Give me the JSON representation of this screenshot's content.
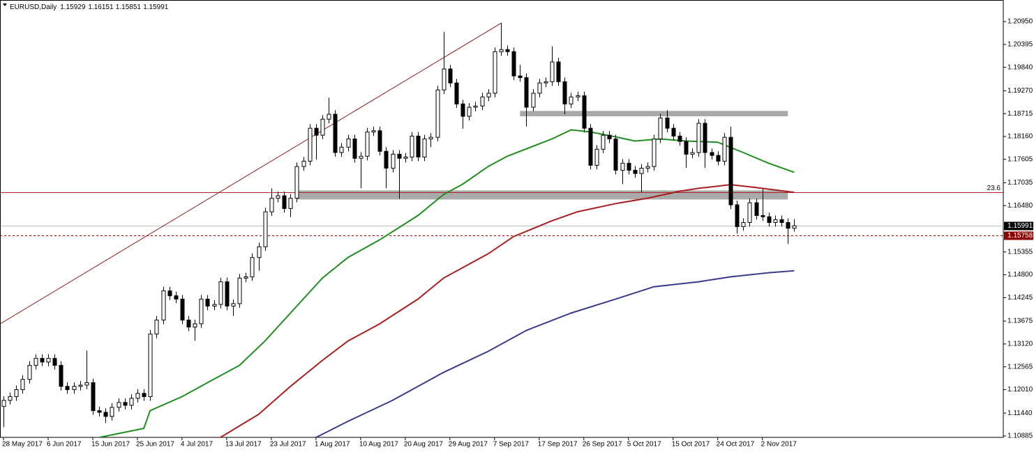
{
  "chart_data": {
    "type": "candlestick",
    "title": "EURUSD,Daily",
    "categories": [
      "28 May 2017",
      null,
      null,
      null,
      null,
      null,
      null,
      "6 Jun 2017",
      null,
      null,
      null,
      null,
      null,
      null,
      "15 Jun 2017",
      null,
      null,
      null,
      null,
      null,
      null,
      "25 Jun 2017",
      null,
      null,
      null,
      null,
      null,
      null,
      "4 Jul 2017",
      null,
      null,
      null,
      null,
      null,
      null,
      "13 Jul 2017",
      null,
      null,
      null,
      null,
      null,
      null,
      "23 Jul 2017",
      null,
      null,
      null,
      null,
      null,
      null,
      "1 Aug 2017",
      null,
      null,
      null,
      null,
      null,
      null,
      "10 Aug 2017",
      null,
      null,
      null,
      null,
      null,
      null,
      "20 Aug 2017",
      null,
      null,
      null,
      null,
      null,
      null,
      "29 Aug 2017",
      null,
      null,
      null,
      null,
      null,
      null,
      "7 Sep 2017",
      null,
      null,
      null,
      null,
      null,
      null,
      "17 Sep 2017",
      null,
      null,
      null,
      null,
      null,
      null,
      "26 Sep 2017",
      null,
      null,
      null,
      null,
      null,
      null,
      "5 Oct 2017",
      null,
      null,
      null,
      null,
      null,
      null,
      "15 Oct 2017",
      null,
      null,
      null,
      null,
      null,
      null,
      "24 Oct 2017",
      null,
      null,
      null,
      null,
      null,
      null,
      "2 Nov 2017",
      null,
      null,
      null,
      null,
      null
    ],
    "open": [
      1.116,
      1.1175,
      1.1184,
      1.1201,
      1.1226,
      1.126,
      1.1277,
      1.1268,
      1.1277,
      1.126,
      1.1209,
      1.1201,
      1.1209,
      1.1212,
      1.1218,
      1.115,
      1.1146,
      1.1136,
      1.1158,
      1.117,
      1.1163,
      1.118,
      1.1192,
      1.1184,
      1.1336,
      1.137,
      1.1441,
      1.1429,
      1.1421,
      1.137,
      1.1353,
      1.1361,
      1.1421,
      1.1404,
      1.1408,
      1.1463,
      1.1404,
      1.141,
      1.1472,
      1.1475,
      1.1522,
      1.1548,
      1.1633,
      1.1666,
      1.1672,
      1.1641,
      1.1666,
      1.1743,
      1.1756,
      1.1836,
      1.1819,
      1.1858,
      1.187,
      1.1777,
      1.179,
      1.181,
      1.1763,
      1.1768,
      1.1827,
      1.183,
      1.178,
      1.1739,
      1.1773,
      1.1763,
      1.1766,
      1.1817,
      1.1766,
      1.181,
      1.1814,
      1.1929,
      1.198,
      1.1946,
      1.1895,
      1.1865,
      1.1887,
      1.189,
      1.1912,
      1.1921,
      1.2022,
      1.2027,
      1.2022,
      1.1963,
      1.1959,
      1.1887,
      1.1921,
      1.1946,
      1.1949,
      1.1997,
      1.1949,
      1.1895,
      1.1912,
      1.1915,
      1.1836,
      1.1746,
      1.1785,
      1.1819,
      1.181,
      1.1734,
      1.1751,
      1.1734,
      1.1726,
      1.1739,
      1.1743,
      1.181,
      1.1861,
      1.1836,
      1.1817,
      1.1804,
      1.1773,
      1.1777,
      1.1848,
      1.1777,
      1.177,
      1.1756,
      1.1814,
      1.165,
      1.1597,
      1.1607,
      1.1655,
      1.1624,
      1.1621,
      1.1607,
      1.1614,
      1.1607,
      1.15929
    ],
    "high": [
      1.1185,
      1.1194,
      1.1211,
      1.1236,
      1.127,
      1.1287,
      1.1287,
      1.1287,
      1.1287,
      1.127,
      1.1219,
      1.1219,
      1.1222,
      1.1296,
      1.1228,
      1.116,
      1.1156,
      1.1168,
      1.118,
      1.118,
      1.119,
      1.1202,
      1.1202,
      1.1346,
      1.138,
      1.1451,
      1.1451,
      1.1439,
      1.1431,
      1.138,
      1.1371,
      1.1431,
      1.1431,
      1.1418,
      1.1473,
      1.1473,
      1.142,
      1.1482,
      1.1485,
      1.1532,
      1.1558,
      1.1643,
      1.169,
      1.1682,
      1.1682,
      1.1676,
      1.1753,
      1.1766,
      1.1846,
      1.1846,
      1.1868,
      1.191,
      1.188,
      1.18,
      1.182,
      1.182,
      1.1778,
      1.1837,
      1.184,
      1.184,
      1.179,
      1.1783,
      1.1783,
      1.1776,
      1.1827,
      1.1827,
      1.182,
      1.1824,
      1.1939,
      1.207,
      1.199,
      1.1956,
      1.1905,
      1.1897,
      1.19,
      1.1922,
      1.1931,
      1.2032,
      1.2092,
      1.2037,
      1.2032,
      1.199,
      1.1969,
      1.1931,
      1.1956,
      1.1959,
      1.2035,
      1.2007,
      1.1959,
      1.1922,
      1.1925,
      1.1925,
      1.1846,
      1.1795,
      1.1829,
      1.1829,
      1.182,
      1.1761,
      1.1761,
      1.1744,
      1.1749,
      1.1753,
      1.182,
      1.1871,
      1.188,
      1.1846,
      1.1827,
      1.1814,
      1.1787,
      1.1858,
      1.1858,
      1.1787,
      1.178,
      1.1824,
      1.184,
      1.166,
      1.1617,
      1.1665,
      1.1665,
      1.169,
      1.1631,
      1.1624,
      1.1624,
      1.1617,
      1.16151
    ],
    "low": [
      1.111,
      1.1165,
      1.1174,
      1.1191,
      1.1216,
      1.125,
      1.1258,
      1.1258,
      1.125,
      1.1199,
      1.1191,
      1.1191,
      1.1199,
      1.1202,
      1.114,
      1.1136,
      1.112,
      1.1126,
      1.1148,
      1.1153,
      1.1153,
      1.117,
      1.1174,
      1.1174,
      1.1326,
      1.136,
      1.1419,
      1.1411,
      1.136,
      1.1343,
      1.132,
      1.1351,
      1.1394,
      1.1394,
      1.1398,
      1.1394,
      1.138,
      1.14,
      1.1462,
      1.1465,
      1.149,
      1.1538,
      1.1623,
      1.1656,
      1.1631,
      1.162,
      1.1656,
      1.1733,
      1.1746,
      1.176,
      1.1809,
      1.1848,
      1.1767,
      1.1767,
      1.178,
      1.1753,
      1.169,
      1.1758,
      1.1817,
      1.177,
      1.169,
      1.1729,
      1.1665,
      1.1753,
      1.1756,
      1.1756,
      1.1756,
      1.179,
      1.1804,
      1.1919,
      1.1936,
      1.1885,
      1.1835,
      1.1855,
      1.1877,
      1.188,
      1.1902,
      1.1911,
      1.2012,
      1.2012,
      1.1953,
      1.1949,
      1.184,
      1.1877,
      1.1911,
      1.1936,
      1.1939,
      1.1939,
      1.187,
      1.1885,
      1.1902,
      1.1826,
      1.1736,
      1.1736,
      1.1775,
      1.18,
      1.1724,
      1.17,
      1.1724,
      1.1716,
      1.168,
      1.1729,
      1.1733,
      1.18,
      1.1826,
      1.1807,
      1.1794,
      1.174,
      1.1763,
      1.1767,
      1.174,
      1.176,
      1.1746,
      1.1746,
      1.164,
      1.158,
      1.1587,
      1.1597,
      1.1614,
      1.1611,
      1.1597,
      1.1597,
      1.1597,
      1.1555,
      1.15851
    ],
    "close": [
      1.1175,
      1.1184,
      1.1201,
      1.1226,
      1.126,
      1.1277,
      1.1268,
      1.1277,
      1.126,
      1.1209,
      1.1201,
      1.1209,
      1.1212,
      1.1218,
      1.115,
      1.1146,
      1.1136,
      1.1158,
      1.117,
      1.1163,
      1.118,
      1.1192,
      1.1184,
      1.1336,
      1.137,
      1.1441,
      1.1429,
      1.1421,
      1.137,
      1.1353,
      1.1361,
      1.1421,
      1.1404,
      1.1408,
      1.1463,
      1.1404,
      1.141,
      1.1472,
      1.1475,
      1.1522,
      1.1548,
      1.1633,
      1.1666,
      1.1672,
      1.1641,
      1.1666,
      1.1743,
      1.1756,
      1.1836,
      1.1819,
      1.1858,
      1.187,
      1.1777,
      1.179,
      1.181,
      1.1763,
      1.1768,
      1.1827,
      1.183,
      1.178,
      1.1739,
      1.1773,
      1.1763,
      1.1766,
      1.1817,
      1.1766,
      1.181,
      1.1814,
      1.1929,
      1.198,
      1.1946,
      1.1895,
      1.1865,
      1.1887,
      1.189,
      1.1912,
      1.1921,
      1.2022,
      1.2027,
      1.2022,
      1.1963,
      1.1959,
      1.1887,
      1.1921,
      1.1946,
      1.1949,
      1.1997,
      1.1949,
      1.1895,
      1.1912,
      1.1915,
      1.1836,
      1.1746,
      1.1785,
      1.1819,
      1.181,
      1.1734,
      1.1751,
      1.1734,
      1.1726,
      1.1739,
      1.1743,
      1.181,
      1.1861,
      1.1836,
      1.1817,
      1.1804,
      1.1773,
      1.1777,
      1.1848,
      1.1777,
      1.177,
      1.1756,
      1.1814,
      1.165,
      1.1597,
      1.1607,
      1.1655,
      1.1624,
      1.1621,
      1.1607,
      1.1614,
      1.1607,
      1.1593,
      1.15991
    ],
    "moving_averages": [
      {
        "color": "#1e8c1e",
        "x": [
          15,
          22,
          23,
          28,
          32,
          37,
          41,
          45,
          50,
          54,
          59,
          65,
          69,
          72,
          76,
          79,
          86,
          89,
          92,
          96,
          99,
          103,
          107,
          112,
          116,
          120,
          124
        ],
        "values": [
          1.1085,
          1.1107,
          1.115,
          1.1184,
          1.1218,
          1.126,
          1.1319,
          1.1387,
          1.1472,
          1.1522,
          1.1565,
          1.1624,
          1.1675,
          1.17,
          1.1743,
          1.1768,
          1.181,
          1.1832,
          1.1827,
          1.1815,
          1.1805,
          1.181,
          1.1805,
          1.1802,
          1.1777,
          1.1751,
          1.1729
        ]
      },
      {
        "color": "#a81e1e",
        "x": [
          34,
          40,
          45,
          50,
          54,
          59,
          65,
          69,
          76,
          80,
          86,
          90,
          96,
          101,
          106,
          109,
          114,
          118,
          124
        ],
        "values": [
          1.1085,
          1.1141,
          1.1209,
          1.1272,
          1.1319,
          1.1361,
          1.1421,
          1.1472,
          1.1531,
          1.1573,
          1.1611,
          1.1633,
          1.1653,
          1.1666,
          1.1683,
          1.169,
          1.1699,
          1.1692,
          1.168
        ]
      },
      {
        "color": "#3a3a8a",
        "x": [
          49,
          54,
          61,
          69,
          76,
          82,
          89,
          96,
          102,
          109,
          114,
          120,
          124
        ],
        "values": [
          1.1085,
          1.1124,
          1.1175,
          1.1243,
          1.1294,
          1.1345,
          1.1387,
          1.1421,
          1.1451,
          1.1463,
          1.1475,
          1.1485,
          1.149
        ]
      }
    ],
    "trendline": {
      "color": "#8b1a1a",
      "x": [
        -0.5,
        78
      ],
      "values": [
        1.1361,
        1.2091
      ]
    },
    "zones": [
      {
        "color": "#a9a9a9",
        "x": [
          81,
          123
        ],
        "values": [
          1.1865,
          1.1878
        ]
      },
      {
        "color": "#a9a9a9",
        "x": [
          46,
          123
        ],
        "values": [
          1.1663,
          1.1685
        ]
      }
    ],
    "levels": [
      {
        "value": 1.168,
        "color": "#b22222",
        "style": "solid",
        "label": "23.6"
      },
      {
        "value": 1.15991,
        "color": "#c0c0c0",
        "style": "solid",
        "tag_color": "#000000"
      },
      {
        "value": 1.15758,
        "color": "#8b0000",
        "style": "dashed",
        "tag_color": "#8b0000"
      }
    ],
    "ylim": [
      1.10851,
      1.21458
    ],
    "yticks": [
      {
        "value": 1.2095,
        "label": "1.20950"
      },
      {
        "value": 1.20395,
        "label": "1.20395"
      },
      {
        "value": 1.1984,
        "label": "1.19840"
      },
      {
        "value": 1.1927,
        "label": "1.19270"
      },
      {
        "value": 1.18715,
        "label": "1.18715"
      },
      {
        "value": 1.1816,
        "label": "1.18160"
      },
      {
        "value": 1.17605,
        "label": "1.17605"
      },
      {
        "value": 1.17035,
        "label": "1.17035"
      },
      {
        "value": 1.1648,
        "label": "1.16480"
      },
      {
        "value": 1.15355,
        "label": "1.15355"
      },
      {
        "value": 1.148,
        "label": "1.14800"
      },
      {
        "value": 1.14245,
        "label": "1.14245"
      },
      {
        "value": 1.13675,
        "label": "1.13675"
      },
      {
        "value": 1.1312,
        "label": "1.13120"
      },
      {
        "value": 1.12565,
        "label": "1.12565"
      },
      {
        "value": 1.1201,
        "label": "1.12010"
      },
      {
        "value": 1.1144,
        "label": "1.11440"
      },
      {
        "value": 1.10885,
        "label": "1.10885"
      }
    ],
    "grid": false
  }
}
